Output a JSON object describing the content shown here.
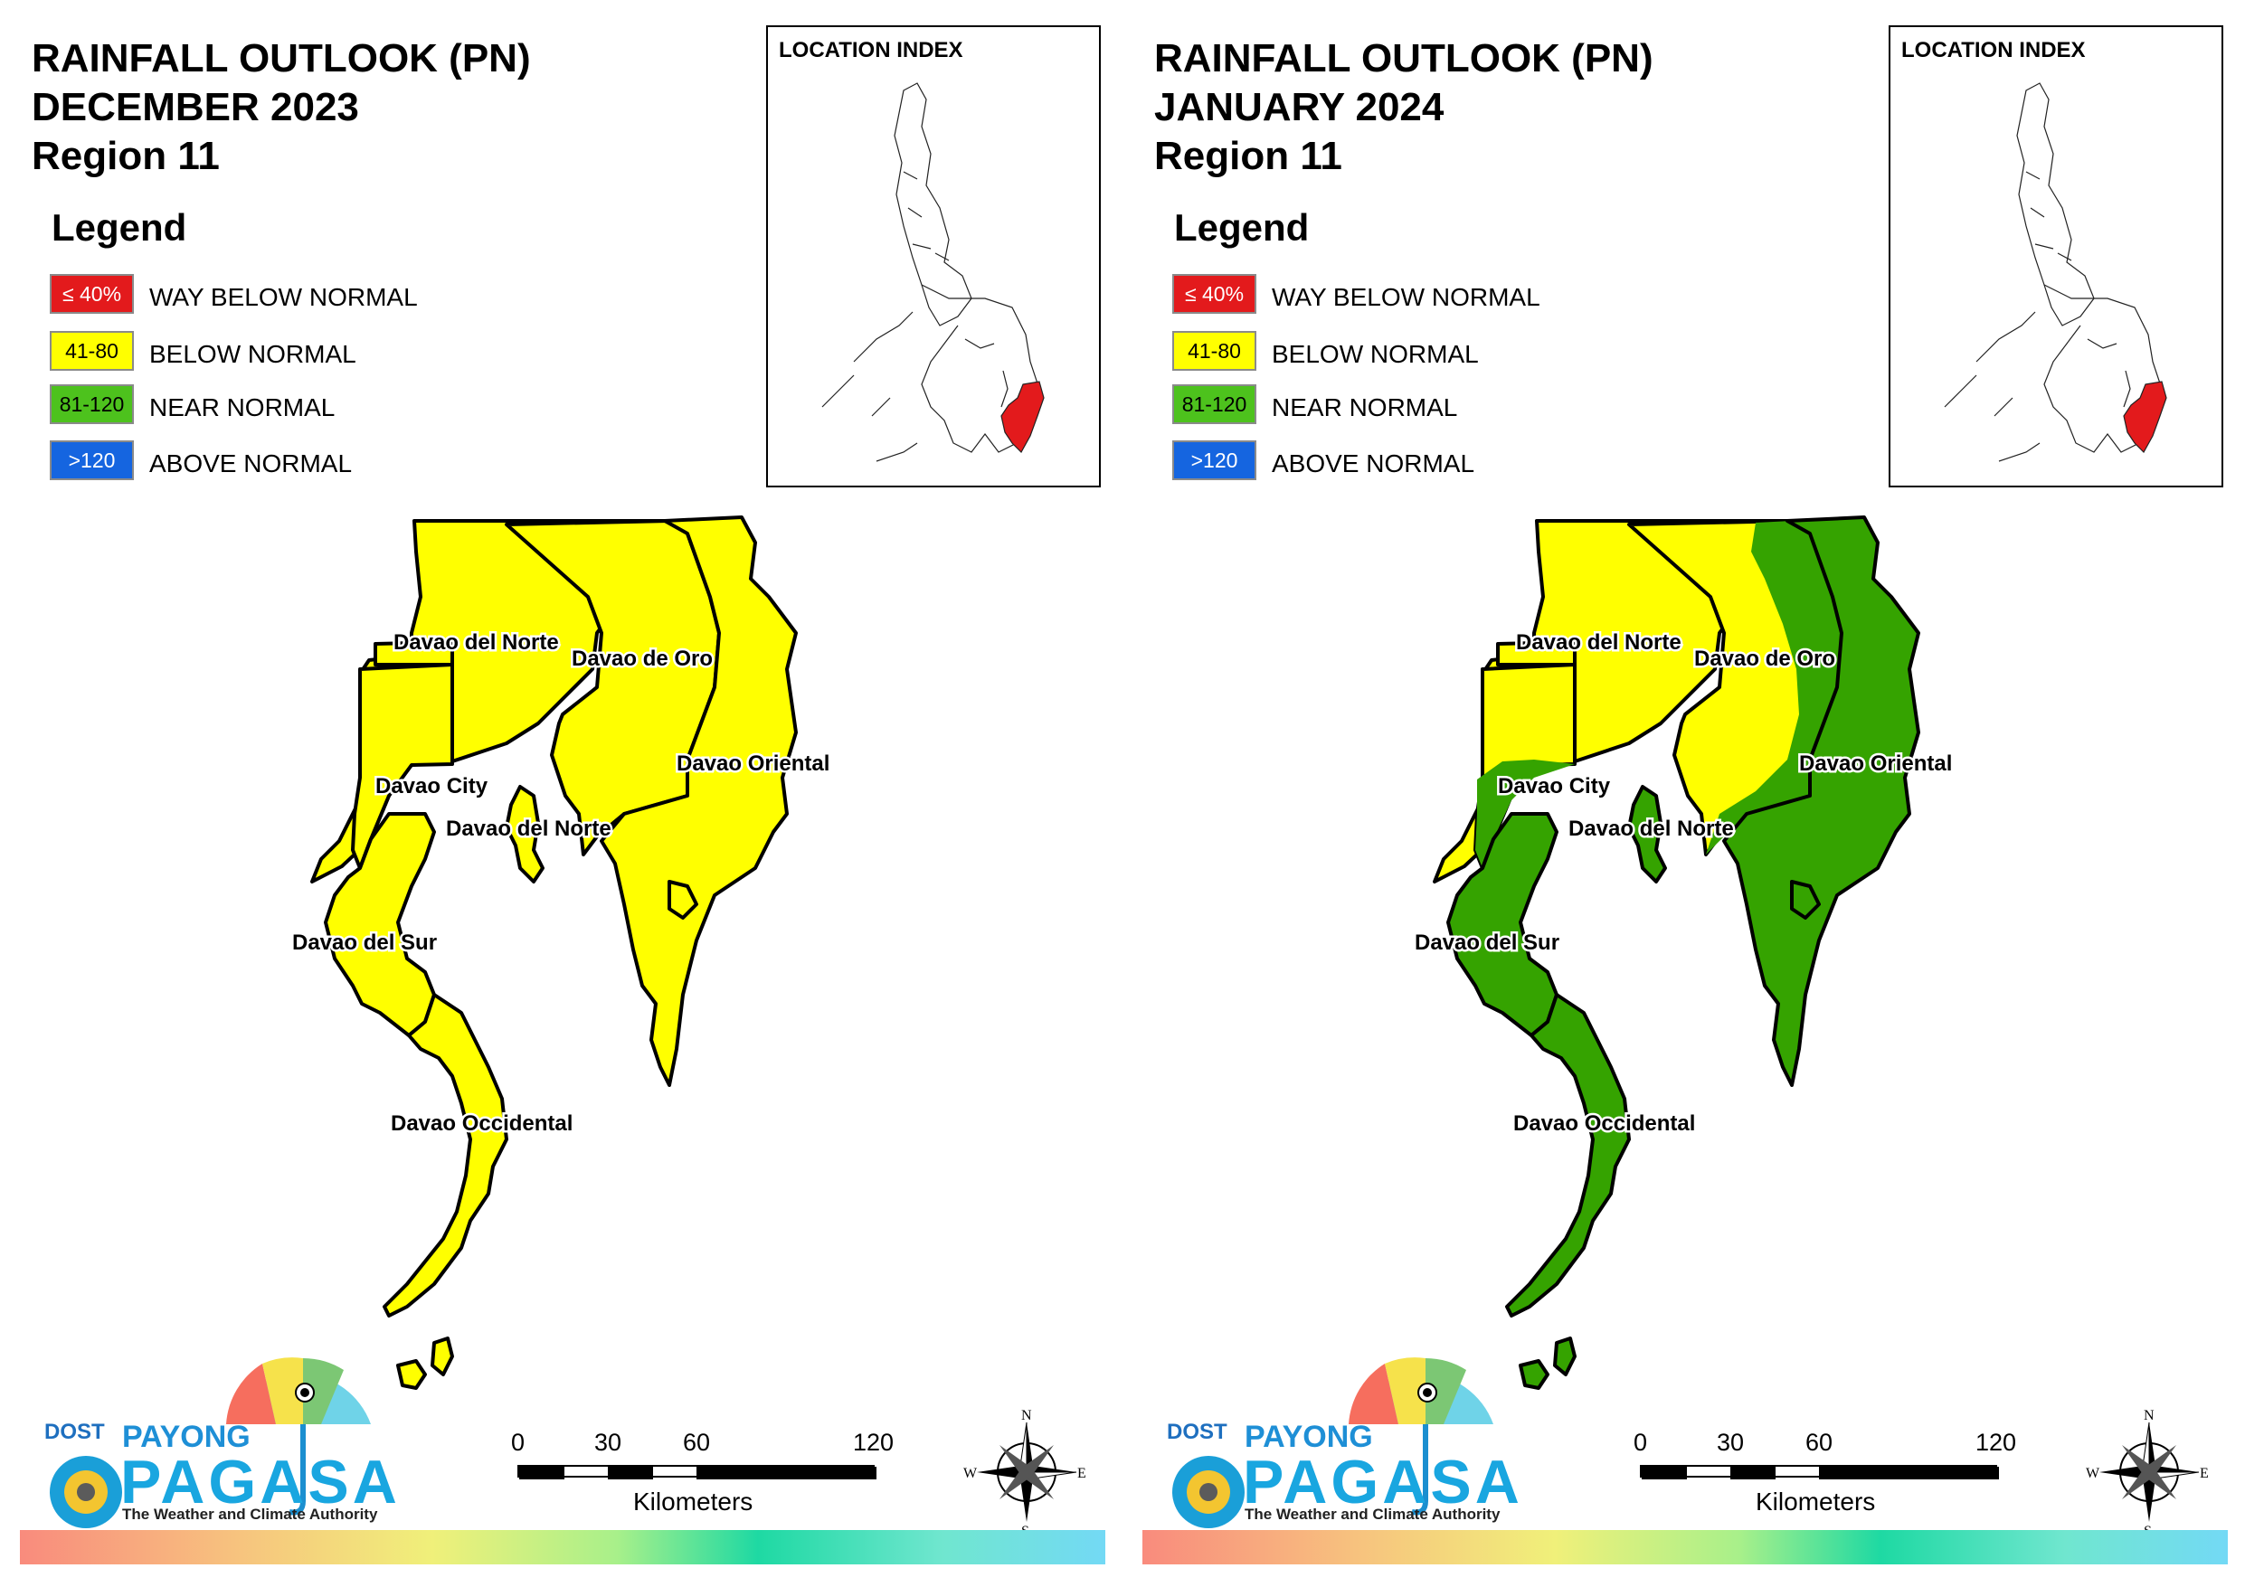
{
  "legend": {
    "heading": "Legend",
    "items": [
      {
        "range": "≤ 40%",
        "label": "WAY BELOW NORMAL",
        "color": "#e31a1c",
        "text_color": "#ffffff"
      },
      {
        "range": "41-80",
        "label": "BELOW NORMAL",
        "color": "#ffff00",
        "text_color": "#000000"
      },
      {
        "range": "81-120",
        "label": "NEAR NORMAL",
        "color": "#4dc21d",
        "text_color": "#000000"
      },
      {
        "range": ">120",
        "label": "ABOVE NORMAL",
        "color": "#1565e0",
        "text_color": "#ffffff"
      }
    ]
  },
  "inset": {
    "title": "LOCATION INDEX",
    "highlight_color": "#e31a1c"
  },
  "labels": {
    "davao_del_norte": "Davao del Norte",
    "davao_de_oro": "Davao de Oro",
    "davao_oriental": "Davao Oriental",
    "davao_city": "Davao City",
    "davao_del_norte_samal": "Davao del Norte",
    "davao_del_sur": "Davao del Sur",
    "davao_occidental": "Davao Occidental"
  },
  "scale": {
    "ticks": [
      "0",
      "30",
      "60",
      "120"
    ],
    "unit": "Kilometers"
  },
  "compass": {
    "n": "N",
    "s": "S",
    "e": "E",
    "w": "W"
  },
  "logo": {
    "dost": "DOST",
    "payong": "PAYONG",
    "pagasa": "PAGASA",
    "tagline": "The Weather and Climate Authority"
  },
  "panels": [
    {
      "title_line1": "RAINFALL OUTLOOK (PN)",
      "title_line2": "DECEMBER 2023",
      "title_line3": "Region 11",
      "categories": {
        "davao_del_norte": "BELOW NORMAL",
        "davao_de_oro": "BELOW NORMAL",
        "davao_oriental": "BELOW NORMAL",
        "davao_city": "BELOW NORMAL",
        "davao_del_sur": "BELOW NORMAL",
        "davao_occidental": "BELOW NORMAL"
      }
    },
    {
      "title_line1": "RAINFALL OUTLOOK (PN)",
      "title_line2": "JANUARY 2024",
      "title_line3": "Region 11",
      "categories": {
        "davao_del_norte": "BELOW NORMAL",
        "davao_de_oro": "BELOW NORMAL (west), NEAR NORMAL (east)",
        "davao_oriental": "NEAR NORMAL",
        "davao_city": "BELOW NORMAL (north), NEAR NORMAL (south)",
        "davao_del_sur": "NEAR NORMAL",
        "davao_occidental": "NEAR NORMAL"
      },
      "colors": {
        "yellow": "#ffff00",
        "green": "#35a300"
      }
    }
  ]
}
